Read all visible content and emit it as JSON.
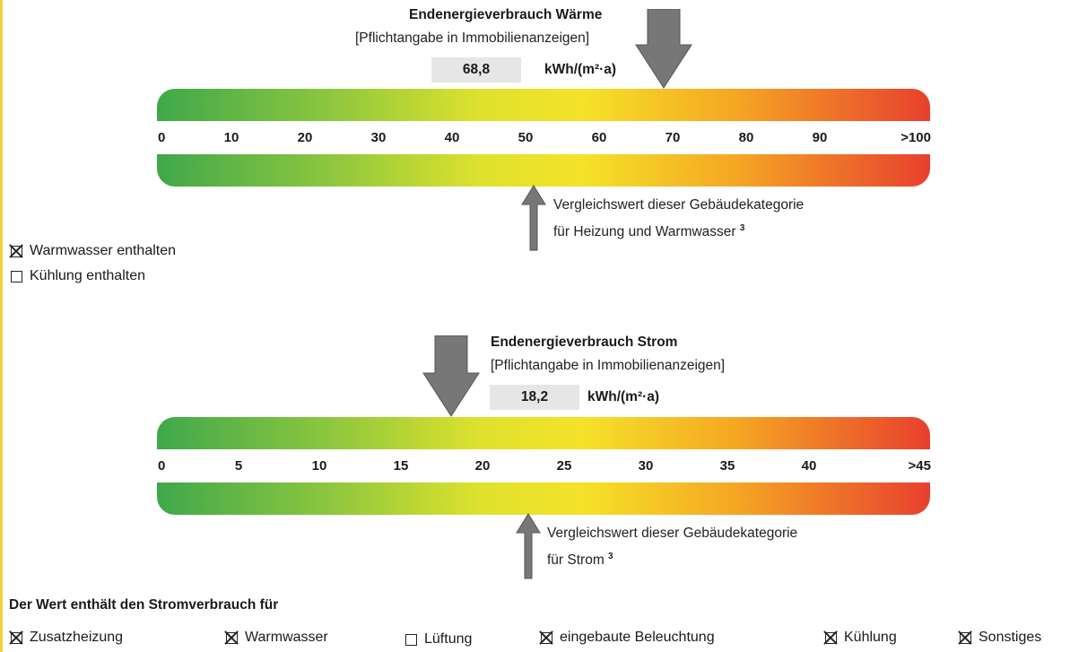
{
  "heat": {
    "title": "Endenergieverbrauch Wärme",
    "subtitle": "[Pflichtangabe in Immobilienanzeigen]",
    "value": "68,8",
    "unit": "kWh/(m²·a)",
    "ticks": [
      "0",
      "10",
      "20",
      "30",
      "40",
      "50",
      "60",
      "70",
      "80",
      "90",
      ">100"
    ],
    "comparison_line1": "Vergleichswert dieser Gebäudekategorie",
    "comparison_line2": "für Heizung und Warmwasser",
    "comparison_footnote": "3"
  },
  "heat_includes": [
    {
      "label": "Warmwasser enthalten",
      "checked": true
    },
    {
      "label": "Kühlung enthalten",
      "checked": false
    }
  ],
  "power": {
    "title": "Endenergieverbrauch Strom",
    "subtitle": "[Pflichtangabe in Immobilienanzeigen]",
    "value": "18,2",
    "unit": "kWh/(m²·a)",
    "ticks": [
      "0",
      "5",
      "10",
      "15",
      "20",
      "25",
      "30",
      "35",
      "40",
      ">45"
    ],
    "comparison_line1": "Vergleichswert dieser Gebäudekategorie",
    "comparison_line2": "für Strom",
    "comparison_footnote": "3"
  },
  "power_usage": {
    "heading": "Der Wert enthält den Stromverbrauch für",
    "items": [
      {
        "label": "Zusatzheizung",
        "checked": true
      },
      {
        "label": "Warmwasser",
        "checked": true
      },
      {
        "label": "Lüftung",
        "checked": false
      },
      {
        "label": "eingebaute Beleuchtung",
        "checked": true
      },
      {
        "label": "Kühlung",
        "checked": true
      },
      {
        "label": "Sonstiges",
        "checked": true
      }
    ]
  },
  "colors": {
    "scale_green": "#3fa84a",
    "scale_yellow": "#f5e229",
    "scale_red": "#e8402e",
    "arrow": "#777777",
    "value_box": "#e6e6e6"
  }
}
